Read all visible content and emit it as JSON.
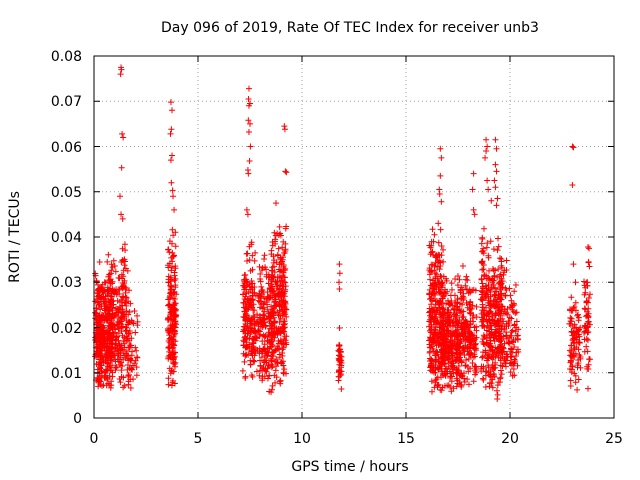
{
  "chart_data": {
    "type": "scatter",
    "title": "Day 096 of 2019, Rate Of TEC Index for receiver unb3",
    "xlabel": "GPS time / hours",
    "ylabel": "ROTI / TECUs",
    "xlim": [
      0,
      25
    ],
    "ylim": [
      0,
      0.08
    ],
    "xticks": [
      "0",
      "5",
      "10",
      "15",
      "20",
      "25"
    ],
    "yticks": [
      "0",
      "0.01",
      "0.02",
      "0.03",
      "0.04",
      "0.05",
      "0.06",
      "0.07",
      "0.08"
    ],
    "grid": true,
    "marker": "+",
    "color": "#ff0000",
    "series": [
      {
        "name": "ROTI",
        "clusters": [
          {
            "x_min": 0.05,
            "x_max": 0.9,
            "y_min": 0.005,
            "y_max": 0.036,
            "count": 380
          },
          {
            "x_min": 0.6,
            "x_max": 1.0,
            "y_min": 0.01,
            "y_max": 0.042,
            "count": 60
          },
          {
            "x_min": 1.0,
            "x_max": 1.7,
            "y_min": 0.006,
            "y_max": 0.035,
            "count": 160
          },
          {
            "x_min": 1.3,
            "x_max": 1.5,
            "y_min": 0.024,
            "y_max": 0.045,
            "count": 20
          },
          {
            "x_min": 1.7,
            "x_max": 2.1,
            "y_min": 0.006,
            "y_max": 0.028,
            "count": 40
          },
          {
            "x_min": 3.55,
            "x_max": 3.95,
            "y_min": 0.006,
            "y_max": 0.043,
            "count": 190
          },
          {
            "x_min": 7.15,
            "x_max": 7.75,
            "y_min": 0.007,
            "y_max": 0.04,
            "count": 170
          },
          {
            "x_min": 7.6,
            "x_max": 8.0,
            "y_min": 0.01,
            "y_max": 0.03,
            "count": 40
          },
          {
            "x_min": 7.95,
            "x_max": 8.6,
            "y_min": 0.005,
            "y_max": 0.038,
            "count": 180
          },
          {
            "x_min": 8.5,
            "x_max": 9.25,
            "y_min": 0.007,
            "y_max": 0.046,
            "count": 260
          },
          {
            "x_min": 11.75,
            "x_max": 11.9,
            "y_min": 0.006,
            "y_max": 0.021,
            "count": 40
          },
          {
            "x_min": 16.1,
            "x_max": 16.8,
            "y_min": 0.005,
            "y_max": 0.043,
            "count": 300
          },
          {
            "x_min": 16.7,
            "x_max": 17.5,
            "y_min": 0.005,
            "y_max": 0.032,
            "count": 260
          },
          {
            "x_min": 17.4,
            "x_max": 18.1,
            "y_min": 0.006,
            "y_max": 0.034,
            "count": 180
          },
          {
            "x_min": 18.05,
            "x_max": 18.4,
            "y_min": 0.008,
            "y_max": 0.031,
            "count": 60
          },
          {
            "x_min": 18.6,
            "x_max": 19.1,
            "y_min": 0.006,
            "y_max": 0.045,
            "count": 170
          },
          {
            "x_min": 19.1,
            "x_max": 19.6,
            "y_min": 0.004,
            "y_max": 0.041,
            "count": 160
          },
          {
            "x_min": 19.45,
            "x_max": 19.85,
            "y_min": 0.008,
            "y_max": 0.038,
            "count": 80
          },
          {
            "x_min": 19.8,
            "x_max": 20.4,
            "y_min": 0.007,
            "y_max": 0.03,
            "count": 80
          },
          {
            "x_min": 22.85,
            "x_max": 23.4,
            "y_min": 0.006,
            "y_max": 0.029,
            "count": 90
          },
          {
            "x_min": 23.55,
            "x_max": 23.85,
            "y_min": 0.006,
            "y_max": 0.037,
            "count": 50
          }
        ],
        "points": [
          [
            1.3,
            0.0775
          ],
          [
            1.32,
            0.077
          ],
          [
            1.28,
            0.076
          ],
          [
            1.35,
            0.0628
          ],
          [
            1.4,
            0.062
          ],
          [
            1.33,
            0.0553
          ],
          [
            1.25,
            0.049
          ],
          [
            1.3,
            0.045
          ],
          [
            1.38,
            0.044
          ],
          [
            3.7,
            0.0698
          ],
          [
            3.75,
            0.068
          ],
          [
            3.72,
            0.0638
          ],
          [
            3.68,
            0.0628
          ],
          [
            3.75,
            0.058
          ],
          [
            3.7,
            0.057
          ],
          [
            3.72,
            0.052
          ],
          [
            3.78,
            0.0503
          ],
          [
            3.8,
            0.049
          ],
          [
            3.85,
            0.046
          ],
          [
            7.45,
            0.0728
          ],
          [
            7.43,
            0.0705
          ],
          [
            7.5,
            0.0695
          ],
          [
            7.45,
            0.069
          ],
          [
            7.42,
            0.0658
          ],
          [
            7.5,
            0.065
          ],
          [
            7.45,
            0.0632
          ],
          [
            7.52,
            0.06
          ],
          [
            7.48,
            0.0568
          ],
          [
            7.4,
            0.0548
          ],
          [
            7.42,
            0.054
          ],
          [
            7.35,
            0.046
          ],
          [
            7.4,
            0.045
          ],
          [
            8.75,
            0.0475
          ],
          [
            9.2,
            0.0545
          ],
          [
            9.25,
            0.0543
          ],
          [
            9.15,
            0.0645
          ],
          [
            9.18,
            0.0638
          ],
          [
            11.8,
            0.034
          ],
          [
            11.82,
            0.032
          ],
          [
            11.78,
            0.03
          ],
          [
            11.8,
            0.0285
          ],
          [
            16.65,
            0.0595
          ],
          [
            16.7,
            0.0575
          ],
          [
            16.65,
            0.0535
          ],
          [
            16.6,
            0.0505
          ],
          [
            16.62,
            0.0495
          ],
          [
            16.7,
            0.0478
          ],
          [
            16.55,
            0.043
          ],
          [
            18.25,
            0.054
          ],
          [
            18.2,
            0.0505
          ],
          [
            18.25,
            0.046
          ],
          [
            18.3,
            0.045
          ],
          [
            18.85,
            0.0615
          ],
          [
            18.9,
            0.06
          ],
          [
            18.85,
            0.059
          ],
          [
            18.8,
            0.0575
          ],
          [
            18.9,
            0.0525
          ],
          [
            18.95,
            0.0505
          ],
          [
            19.3,
            0.0615
          ],
          [
            19.35,
            0.0595
          ],
          [
            19.3,
            0.056
          ],
          [
            19.35,
            0.0545
          ],
          [
            19.25,
            0.0525
          ],
          [
            19.3,
            0.051
          ],
          [
            19.4,
            0.0485
          ],
          [
            19.35,
            0.047
          ],
          [
            19.1,
            0.048
          ],
          [
            20.1,
            0.025
          ],
          [
            20.2,
            0.028
          ],
          [
            20.3,
            0.02
          ],
          [
            23.0,
            0.06
          ],
          [
            23.05,
            0.0598
          ],
          [
            23.0,
            0.0515
          ],
          [
            23.05,
            0.034
          ],
          [
            23.15,
            0.03
          ],
          [
            23.75,
            0.0378
          ],
          [
            23.8,
            0.0375
          ],
          [
            23.78,
            0.0345
          ],
          [
            23.72,
            0.03
          ],
          [
            23.75,
            0.0255
          ],
          [
            23.7,
            0.02
          ],
          [
            23.8,
            0.013
          ],
          [
            23.75,
            0.0065
          ]
        ]
      }
    ]
  }
}
